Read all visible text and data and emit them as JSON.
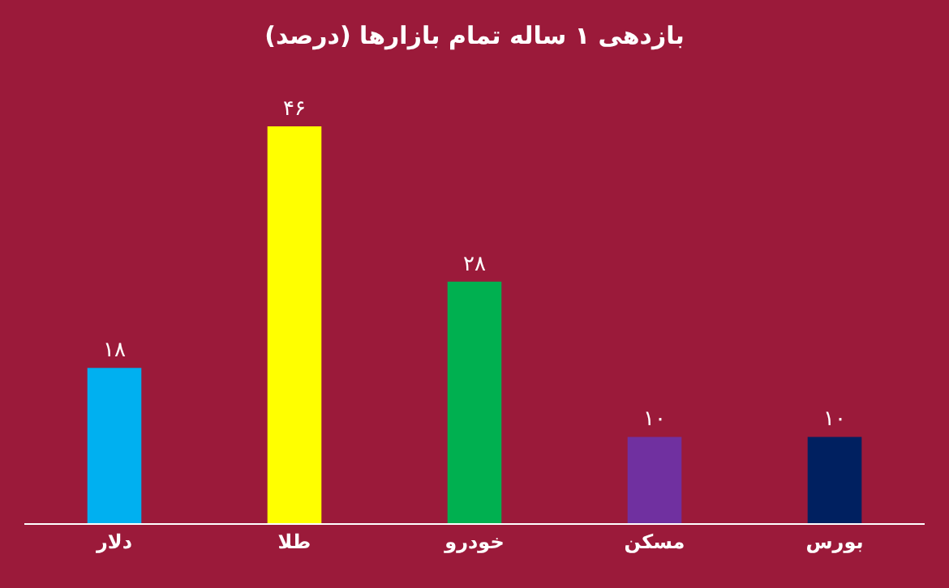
{
  "chart_data": {
    "type": "bar",
    "title": "بازدهی ۱ ساله تمام بازارها (درصد)",
    "categories": [
      "دلار",
      "طلا",
      "خودرو",
      "مسکن",
      "بورس"
    ],
    "values": [
      18,
      46,
      28,
      10,
      10
    ],
    "colors": [
      "#00b0f0",
      "#ffff00",
      "#00b050",
      "#7030a0",
      "#002060"
    ],
    "value_labels": [
      "۱۸",
      "۴۶",
      "۲۸",
      "۱۰",
      "۱۰"
    ],
    "grid": false,
    "legend": false
  }
}
